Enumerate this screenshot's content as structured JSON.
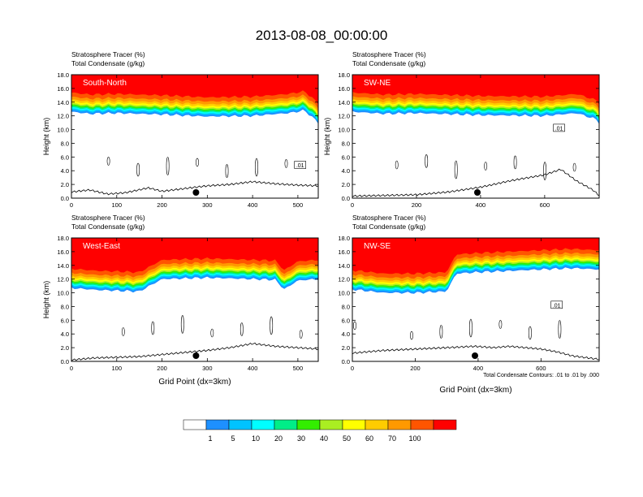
{
  "figure": {
    "title": "2013-08-08_00:00:00",
    "contour_note": "Total Condensate Contours: .01 to .01 by .000",
    "colorbar": {
      "colors": [
        "#ffffff",
        "#1e90ff",
        "#00c3ff",
        "#00ffff",
        "#00ee88",
        "#33ee00",
        "#aaee22",
        "#ffff00",
        "#ffcc00",
        "#ff9900",
        "#ff5500",
        "#ff0000"
      ],
      "labels": [
        "1",
        "5",
        "10",
        "20",
        "30",
        "40",
        "50",
        "60",
        "70",
        "100"
      ]
    }
  },
  "chart_data": [
    {
      "type": "heatmap",
      "panel_label": "South-North",
      "subtitle_line1": "Stratosphere Tracer   (%)",
      "subtitle_line2": "Total Condensate   (g/kg)",
      "xlabel": "",
      "ylabel": "Height (km)",
      "xlim": [
        0,
        545
      ],
      "ylim": [
        0,
        18
      ],
      "xticks": [
        0,
        100,
        200,
        300,
        400,
        500
      ],
      "xtick_labels": [
        "0",
        "100",
        "200",
        "300",
        "400",
        "500"
      ],
      "yticks": [
        0,
        2,
        4,
        6,
        8,
        10,
        12,
        14,
        16,
        18
      ],
      "ytick_labels": [
        "0.0",
        "2.0",
        "4.0",
        "6.0",
        "8.0",
        "10.0",
        "12.0",
        "14.0",
        "16.0",
        "18.0"
      ],
      "tracer_base_km": [
        [
          0,
          12.6
        ],
        [
          40,
          12.3
        ],
        [
          100,
          12.4
        ],
        [
          200,
          12.2
        ],
        [
          300,
          11.9
        ],
        [
          400,
          12.0
        ],
        [
          480,
          12.4
        ],
        [
          515,
          12.8
        ],
        [
          545,
          11.0
        ]
      ],
      "terrain_km": [
        [
          0,
          0.9
        ],
        [
          40,
          1.2
        ],
        [
          80,
          0.6
        ],
        [
          120,
          0.8
        ],
        [
          170,
          1.5
        ],
        [
          200,
          1.0
        ],
        [
          250,
          1.4
        ],
        [
          300,
          1.8
        ],
        [
          350,
          2.0
        ],
        [
          400,
          2.4
        ],
        [
          450,
          2.1
        ],
        [
          500,
          1.9
        ],
        [
          545,
          1.8
        ]
      ],
      "marker_x": 275,
      "contour_label": ".01",
      "contour_label_pos": [
        505,
        4.8
      ]
    },
    {
      "type": "heatmap",
      "panel_label": "SW-NE",
      "subtitle_line1": "Stratosphere Tracer   (%)",
      "subtitle_line2": "Total Condensate   (g/kg)",
      "xlabel": "",
      "ylabel": "Height (km)",
      "xlim": [
        0,
        770
      ],
      "ylim": [
        0,
        18
      ],
      "xticks": [
        0,
        200,
        400,
        600
      ],
      "xtick_labels": [
        "0",
        "200",
        "400",
        "600"
      ],
      "yticks": [
        0,
        2,
        4,
        6,
        8,
        10,
        12,
        14,
        16,
        18
      ],
      "ytick_labels": [
        "0.0",
        "2.0",
        "4.0",
        "6.0",
        "8.0",
        "10.0",
        "12.0",
        "14.0",
        "16.0",
        "18.0"
      ],
      "tracer_base_km": [
        [
          0,
          12.6
        ],
        [
          100,
          12.3
        ],
        [
          200,
          12.4
        ],
        [
          400,
          12.1
        ],
        [
          600,
          12.0
        ],
        [
          700,
          12.4
        ],
        [
          760,
          11.5
        ],
        [
          770,
          11.0
        ]
      ],
      "terrain_km": [
        [
          0,
          0.3
        ],
        [
          100,
          0.4
        ],
        [
          200,
          0.5
        ],
        [
          300,
          0.9
        ],
        [
          400,
          1.6
        ],
        [
          500,
          2.6
        ],
        [
          600,
          3.4
        ],
        [
          650,
          4.2
        ],
        [
          700,
          2.5
        ],
        [
          750,
          1.2
        ],
        [
          770,
          0.4
        ]
      ],
      "marker_x": 390,
      "contour_label": ".01",
      "contour_label_pos": [
        645,
        10.2
      ]
    },
    {
      "type": "heatmap",
      "panel_label": "West-East",
      "subtitle_line1": "Stratosphere Tracer   (%)",
      "subtitle_line2": "Total Condensate   (g/kg)",
      "xlabel": "Grid Point (dx=3km)",
      "ylabel": "Height (km)",
      "xlim": [
        0,
        545
      ],
      "ylim": [
        0,
        18
      ],
      "xticks": [
        0,
        100,
        200,
        300,
        400,
        500
      ],
      "xtick_labels": [
        "0",
        "100",
        "200",
        "300",
        "400",
        "500"
      ],
      "yticks": [
        0,
        2,
        4,
        6,
        8,
        10,
        12,
        14,
        16,
        18
      ],
      "ytick_labels": [
        "0.0",
        "2.0",
        "4.0",
        "6.0",
        "8.0",
        "10.0",
        "12.0",
        "14.0",
        "16.0",
        "18.0"
      ],
      "tracer_base_km": [
        [
          0,
          10.7
        ],
        [
          60,
          10.4
        ],
        [
          150,
          10.2
        ],
        [
          200,
          12.0
        ],
        [
          300,
          12.2
        ],
        [
          400,
          12.0
        ],
        [
          450,
          11.9
        ],
        [
          470,
          10.5
        ],
        [
          500,
          11.8
        ],
        [
          545,
          12.0
        ]
      ],
      "terrain_km": [
        [
          0,
          0.2
        ],
        [
          50,
          0.5
        ],
        [
          100,
          0.6
        ],
        [
          150,
          0.7
        ],
        [
          200,
          1.0
        ],
        [
          250,
          1.3
        ],
        [
          300,
          1.6
        ],
        [
          350,
          2.0
        ],
        [
          400,
          2.6
        ],
        [
          450,
          2.2
        ],
        [
          500,
          2.0
        ],
        [
          545,
          1.8
        ]
      ],
      "marker_x": 275,
      "contour_label": "",
      "contour_label_pos": [
        0,
        0
      ]
    },
    {
      "type": "heatmap",
      "panel_label": "NW-SE",
      "subtitle_line1": "Stratosphere Tracer   (%)",
      "subtitle_line2": "Total Condensate   (g/kg)",
      "xlabel": "Grid Point (dx=3km)",
      "ylabel": "",
      "xlim": [
        0,
        785
      ],
      "ylim": [
        0,
        18
      ],
      "xticks": [
        0,
        200,
        400,
        600
      ],
      "xtick_labels": [
        "0",
        "200",
        "400",
        "600"
      ],
      "yticks": [
        0,
        2,
        4,
        6,
        8,
        10,
        12,
        14,
        16,
        18
      ],
      "ytick_labels": [
        "0.0",
        "2.0",
        "4.0",
        "6.0",
        "8.0",
        "10.0",
        "12.0",
        "14.0",
        "16.0",
        "18.0"
      ],
      "tracer_base_km": [
        [
          0,
          10.5
        ],
        [
          100,
          10.0
        ],
        [
          200,
          10.0
        ],
        [
          300,
          10.2
        ],
        [
          330,
          12.8
        ],
        [
          400,
          13.0
        ],
        [
          500,
          13.2
        ],
        [
          600,
          13.4
        ],
        [
          700,
          13.6
        ],
        [
          785,
          13.4
        ]
      ],
      "terrain_km": [
        [
          0,
          1.2
        ],
        [
          100,
          1.6
        ],
        [
          200,
          1.8
        ],
        [
          300,
          2.0
        ],
        [
          390,
          2.2
        ],
        [
          450,
          2.0
        ],
        [
          500,
          2.2
        ],
        [
          600,
          1.8
        ],
        [
          650,
          1.4
        ],
        [
          700,
          0.8
        ],
        [
          785,
          0.3
        ]
      ],
      "marker_x": 390,
      "contour_label": ".01",
      "contour_label_pos": [
        650,
        8.2
      ]
    }
  ]
}
